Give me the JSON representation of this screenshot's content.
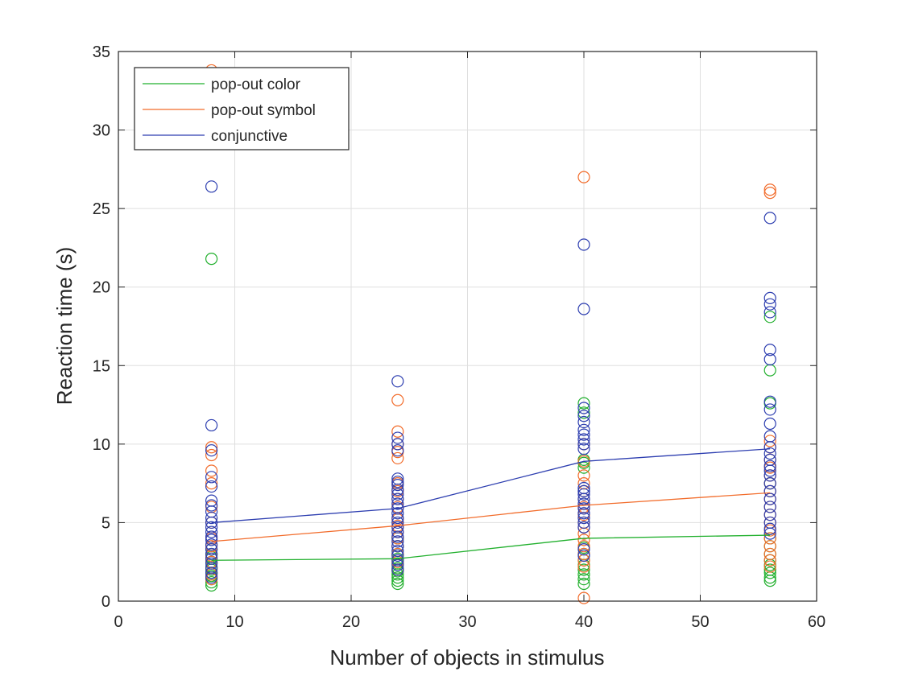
{
  "chart_data": {
    "type": "scatter",
    "title": "",
    "xlabel": "Number of objects in stimulus",
    "ylabel": "Reaction time (s)",
    "xlim": [
      0,
      60
    ],
    "ylim": [
      0,
      35
    ],
    "xticks": [
      "0",
      "10",
      "20",
      "30",
      "40",
      "50",
      "60"
    ],
    "yticks": [
      "0",
      "5",
      "10",
      "15",
      "20",
      "25",
      "30",
      "35"
    ],
    "grid": true,
    "legend_position": "top-left",
    "series": [
      {
        "name": "pop-out color",
        "color": "#22b02e",
        "mean_line": {
          "x": [
            8,
            24,
            40,
            56
          ],
          "y": [
            2.6,
            2.7,
            4.0,
            4.2
          ]
        },
        "points": {
          "8": [
            21.8,
            1.0,
            1.2,
            1.4,
            1.6,
            1.8,
            2.0,
            2.2,
            2.5,
            2.8,
            3.0,
            3.3
          ],
          "24": [
            1.1,
            1.3,
            1.5,
            1.7,
            1.9,
            2.1,
            2.4,
            2.7,
            3.0,
            3.5,
            4.0
          ],
          "40": [
            12.6,
            12.0,
            9.0,
            8.8,
            8.5,
            1.1,
            1.4,
            1.7,
            2.0,
            2.3,
            2.6,
            3.0,
            3.4
          ],
          "56": [
            18.1,
            14.7,
            12.6,
            1.3,
            1.5,
            1.8,
            2.0,
            2.3,
            2.6,
            3.0,
            3.5,
            4.0,
            7.5
          ]
        }
      },
      {
        "name": "pop-out symbol",
        "color": "#f26c2b",
        "mean_line": {
          "x": [
            8,
            24,
            40,
            56
          ],
          "y": [
            3.8,
            4.8,
            6.1,
            6.9
          ]
        },
        "points": {
          "8": [
            33.8,
            9.8,
            9.3,
            8.3,
            7.5,
            6.0,
            5.0,
            4.0,
            3.5,
            2.9,
            2.5,
            2.1,
            1.7,
            1.4
          ],
          "24": [
            12.8,
            10.8,
            10.0,
            9.5,
            9.1,
            7.5,
            7.0,
            6.5,
            6.0,
            5.2,
            4.8,
            4.4,
            4.0,
            3.5,
            3.0,
            2.5,
            2.0
          ],
          "40": [
            27.0,
            10.0,
            8.9,
            8.0,
            7.5,
            7.0,
            6.5,
            6.0,
            5.5,
            5.0,
            4.7,
            4.3,
            3.9,
            3.5,
            3.0,
            2.6,
            2.2,
            0.2
          ],
          "56": [
            26.2,
            26.0,
            10.2,
            9.8,
            9.0,
            8.5,
            8.0,
            7.5,
            7.0,
            6.5,
            6.0,
            5.5,
            5.0,
            4.5,
            4.0,
            3.5,
            3.0,
            2.6,
            2.2
          ]
        }
      },
      {
        "name": "conjunctive",
        "color": "#2d3eb0",
        "mean_line": {
          "x": [
            8,
            24,
            40,
            56
          ],
          "y": [
            5.0,
            5.9,
            8.9,
            9.7
          ]
        },
        "points": {
          "8": [
            26.4,
            11.2,
            9.6,
            7.9,
            7.3,
            6.4,
            6.1,
            5.7,
            5.3,
            5.0,
            4.7,
            4.4,
            4.1,
            3.9,
            3.6,
            3.3,
            3.0,
            2.7,
            2.4,
            2.1,
            1.8,
            1.5
          ],
          "24": [
            14.0,
            10.4,
            10.0,
            9.6,
            7.8,
            7.6,
            7.4,
            7.1,
            6.8,
            6.5,
            6.2,
            5.9,
            5.6,
            5.3,
            5.0,
            4.7,
            4.4,
            4.1,
            3.8,
            3.5,
            3.2,
            2.9,
            2.6,
            2.3,
            2.0
          ],
          "40": [
            22.7,
            18.6,
            12.3,
            11.8,
            11.4,
            10.9,
            10.6,
            10.3,
            10.0,
            9.7,
            7.2,
            7.0,
            6.8,
            6.5,
            6.2,
            5.9,
            5.6,
            5.3,
            5.0,
            4.7,
            3.3,
            2.9
          ],
          "56": [
            24.4,
            19.3,
            18.9,
            18.4,
            16.0,
            15.4,
            12.7,
            12.2,
            11.3,
            10.5,
            9.8,
            9.4,
            9.0,
            8.6,
            8.3,
            8.0,
            7.5,
            7.0,
            6.5,
            6.0,
            5.5,
            5.0,
            4.6,
            4.3
          ]
        }
      }
    ]
  }
}
